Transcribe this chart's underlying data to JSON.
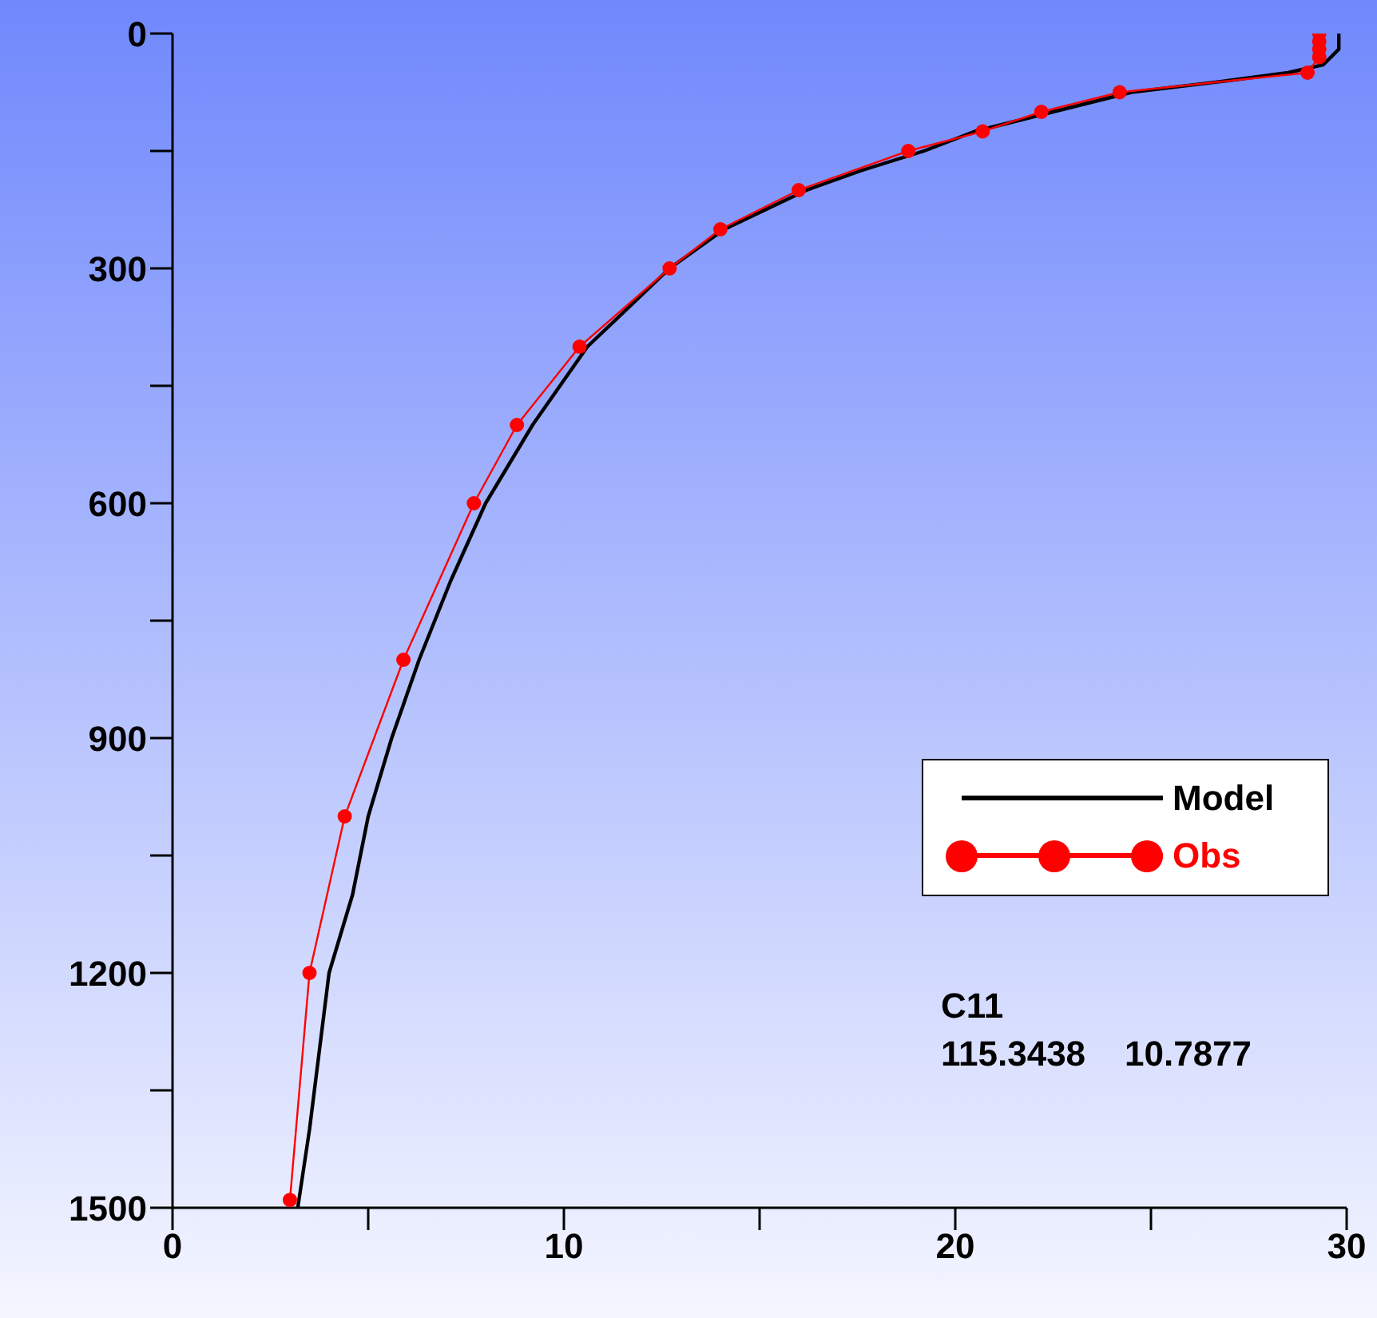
{
  "chart_data": {
    "type": "line",
    "xlim": [
      0,
      30
    ],
    "ylim": [
      1500,
      0
    ],
    "xticks": [
      0,
      {
        "value": 5,
        "label": null
      },
      10,
      {
        "value": 15,
        "label": null
      },
      20,
      {
        "value": 25,
        "label": null
      },
      30
    ],
    "yticks": [
      0,
      {
        "value": 150,
        "label": null
      },
      300,
      {
        "value": 450,
        "label": null
      },
      600,
      {
        "value": 750,
        "label": null
      },
      900,
      {
        "value": 1050,
        "label": null
      },
      1200,
      {
        "value": 1350,
        "label": null
      },
      1500
    ],
    "legend": "right",
    "grid": false,
    "line_style": "solid",
    "annotations": [
      "C11",
      "115.3438    10.7877"
    ],
    "series": [
      {
        "name": "Model",
        "color": "#000000",
        "marker": "none",
        "x": [
          29.8,
          29.8,
          29.4,
          28.5,
          27,
          24.5,
          22.5,
          20.5,
          19.2,
          17.6,
          16.2,
          14.1,
          12.7,
          10.6,
          9.2,
          8.0,
          7.1,
          6.3,
          5.6,
          5.0,
          4.6,
          4.0,
          3.75,
          3.5,
          3.2
        ],
        "values": [
          0,
          20,
          40,
          50,
          60,
          75,
          100,
          125,
          150,
          175,
          200,
          250,
          300,
          400,
          500,
          600,
          700,
          800,
          900,
          1000,
          1100,
          1200,
          1300,
          1400,
          1500
        ]
      },
      {
        "name": "Obs",
        "color": "#ff0000",
        "marker": "circle",
        "x": [
          29.3,
          29.3,
          29.3,
          29.3,
          29.0,
          24.2,
          22.2,
          20.7,
          18.8,
          16.0,
          14.0,
          12.7,
          10.4,
          8.8,
          7.7,
          5.9,
          4.4,
          3.5,
          3.0
        ],
        "values": [
          0,
          10,
          20,
          30,
          50,
          75,
          100,
          125,
          150,
          200,
          250,
          300,
          400,
          500,
          600,
          800,
          1000,
          1200,
          1490
        ]
      }
    ]
  }
}
